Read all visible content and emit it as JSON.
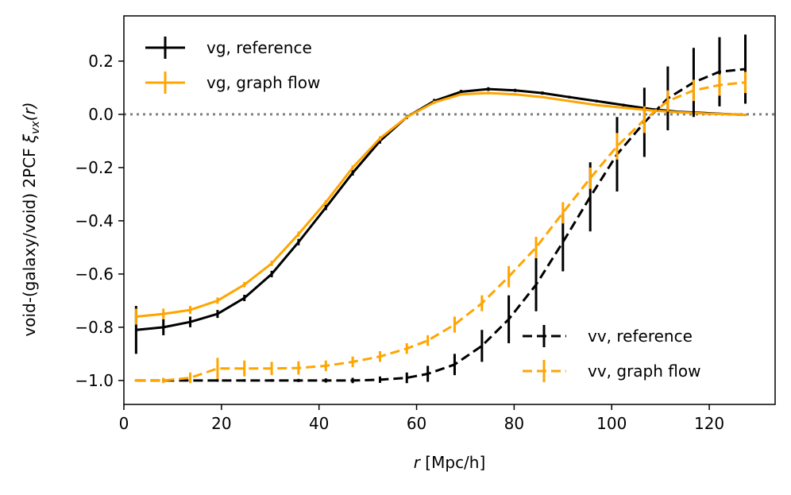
{
  "chart_data": {
    "type": "line",
    "xlabel_symbol": "r",
    "xlabel_units": " [Mpc/h]",
    "ylabel_main": "void-(galaxy/void) 2PCF ",
    "ylabel_symbol": "ξ",
    "ylabel_subscript": "vx",
    "ylabel_arg": "(r)",
    "xlim": [
      0,
      133.5
    ],
    "ylim": [
      -1.09,
      0.37
    ],
    "xticks": [
      0,
      20,
      40,
      60,
      80,
      100,
      120
    ],
    "xtick_labels": [
      "0",
      "20",
      "40",
      "60",
      "80",
      "100",
      "120"
    ],
    "yticks": [
      0.2,
      0.0,
      -0.2,
      -0.4,
      -0.6,
      -0.8,
      -1.0
    ],
    "ytick_labels": [
      "0.2",
      "0.0",
      "−0.2",
      "−0.4",
      "−0.6",
      "−0.8",
      "−1.0"
    ],
    "reference_line": {
      "y": 0.0,
      "style": "dotted",
      "color": "#808080"
    },
    "legend_top_left": [
      "vg, reference",
      "vg, graph flow"
    ],
    "legend_bottom_right": [
      "vv, reference",
      "vv, graph flow"
    ],
    "series": [
      {
        "name": "vg, reference",
        "color": "#000000",
        "dash": "solid",
        "x": [
          2.5,
          8.1,
          13.6,
          19.2,
          24.7,
          30.3,
          35.8,
          41.4,
          46.9,
          52.5,
          58.0,
          63.6,
          69.1,
          74.7,
          80.2,
          85.8,
          91.3,
          96.9,
          102.4,
          108.0,
          113.5,
          119.1,
          124.6,
          127.4
        ],
        "y": [
          -0.81,
          -0.8,
          -0.78,
          -0.75,
          -0.69,
          -0.6,
          -0.48,
          -0.35,
          -0.22,
          -0.1,
          -0.01,
          0.05,
          0.085,
          0.095,
          0.09,
          0.08,
          0.065,
          0.05,
          0.035,
          0.02,
          0.01,
          0.005,
          0.0,
          -0.002
        ],
        "yerr": [
          0.09,
          0.03,
          0.02,
          0.015,
          0.012,
          0.012,
          0.012,
          0.01,
          0.01,
          0.01,
          0.008,
          0.008,
          0.007,
          0.007,
          0.006,
          0.006,
          0.005,
          0.005,
          0.005,
          0.004,
          0.004,
          0.004,
          0.004,
          0.004
        ]
      },
      {
        "name": "vg, graph flow",
        "color": "#FFA500",
        "dash": "solid",
        "x": [
          2.5,
          8.1,
          13.6,
          19.2,
          24.7,
          30.3,
          35.8,
          41.4,
          46.9,
          52.5,
          58.0,
          63.6,
          69.1,
          74.7,
          80.2,
          85.8,
          91.3,
          96.9,
          102.4,
          108.0,
          113.5,
          119.1,
          124.6,
          127.4
        ],
        "y": [
          -0.76,
          -0.75,
          -0.735,
          -0.7,
          -0.64,
          -0.56,
          -0.45,
          -0.33,
          -0.2,
          -0.09,
          -0.01,
          0.045,
          0.075,
          0.08,
          0.075,
          0.065,
          0.05,
          0.035,
          0.025,
          0.015,
          0.008,
          0.003,
          0.0,
          -0.002
        ],
        "yerr": [
          0.03,
          0.02,
          0.015,
          0.012,
          0.01,
          0.01,
          0.01,
          0.008,
          0.008,
          0.008,
          0.006,
          0.006,
          0.005,
          0.005,
          0.005,
          0.004,
          0.004,
          0.004,
          0.004,
          0.003,
          0.003,
          0.003,
          0.003,
          0.003
        ]
      },
      {
        "name": "vv, reference",
        "color": "#000000",
        "dash": "dashed",
        "x": [
          2.5,
          8.1,
          13.6,
          19.2,
          24.7,
          30.3,
          35.8,
          41.4,
          46.9,
          52.5,
          58.0,
          62.3,
          67.8,
          73.4,
          78.9,
          84.5,
          90.0,
          95.6,
          101.1,
          106.7,
          111.5,
          116.8,
          122.1,
          127.4
        ],
        "y": [
          -1.0,
          -1.0,
          -1.0,
          -1.0,
          -1.0,
          -1.0,
          -1.0,
          -1.0,
          -1.0,
          -0.997,
          -0.99,
          -0.975,
          -0.94,
          -0.87,
          -0.77,
          -0.64,
          -0.48,
          -0.31,
          -0.15,
          -0.03,
          0.06,
          0.12,
          0.16,
          0.17
        ],
        "yerr": [
          0.003,
          0.004,
          0.004,
          0.005,
          0.005,
          0.005,
          0.006,
          0.008,
          0.01,
          0.012,
          0.02,
          0.03,
          0.04,
          0.06,
          0.09,
          0.1,
          0.11,
          0.13,
          0.14,
          0.13,
          0.12,
          0.13,
          0.13,
          0.13
        ]
      },
      {
        "name": "vv, graph flow",
        "color": "#FFA500",
        "dash": "dashed",
        "x": [
          2.5,
          8.1,
          13.6,
          19.2,
          24.7,
          30.3,
          35.8,
          41.4,
          46.9,
          52.5,
          58.0,
          62.3,
          67.8,
          73.4,
          78.9,
          84.5,
          90.0,
          95.6,
          101.1,
          106.7,
          111.5,
          116.8,
          122.1,
          127.4
        ],
        "y": [
          -1.0,
          -1.0,
          -0.99,
          -0.955,
          -0.955,
          -0.955,
          -0.953,
          -0.945,
          -0.93,
          -0.91,
          -0.88,
          -0.85,
          -0.79,
          -0.71,
          -0.61,
          -0.5,
          -0.37,
          -0.24,
          -0.12,
          -0.02,
          0.05,
          0.09,
          0.11,
          0.12
        ],
        "yerr": [
          0.005,
          0.01,
          0.02,
          0.04,
          0.03,
          0.025,
          0.025,
          0.02,
          0.02,
          0.02,
          0.02,
          0.02,
          0.03,
          0.03,
          0.04,
          0.04,
          0.04,
          0.04,
          0.05,
          0.05,
          0.04,
          0.04,
          0.04,
          0.04
        ]
      }
    ]
  }
}
